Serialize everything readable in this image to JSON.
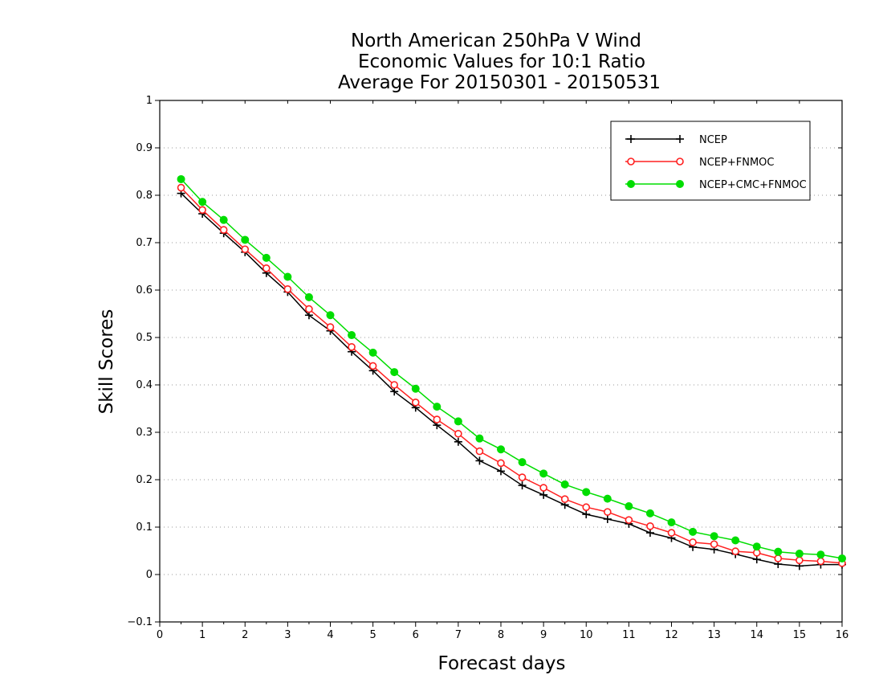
{
  "chart_data": {
    "type": "line",
    "title": [
      "North American 250hPa V Wind",
      "Economic Values for 10:1 Ratio",
      "Average For 20150301 - 20150531"
    ],
    "xlabel": "Forecast days",
    "ylabel": "Skill Scores",
    "xlim": [
      0,
      16
    ],
    "ylim": [
      -0.1,
      1
    ],
    "xticks": [
      "0",
      "1",
      "2",
      "3",
      "4",
      "5",
      "6",
      "7",
      "8",
      "9",
      "10",
      "11",
      "12",
      "13",
      "14",
      "15",
      "16"
    ],
    "yticks": [
      "−0.1",
      "0",
      "0.1",
      "0.2",
      "0.3",
      "0.4",
      "0.5",
      "0.6",
      "0.7",
      "0.8",
      "0.9",
      "1"
    ],
    "grid": "horizontal dotted",
    "legend_position": "top-right",
    "x": [
      0.5,
      1,
      1.5,
      2,
      2.5,
      3,
      3.5,
      4,
      4.5,
      5,
      5.5,
      6,
      6.5,
      7,
      7.5,
      8,
      8.5,
      9,
      9.5,
      10,
      10.5,
      11,
      11.5,
      12,
      12.5,
      13,
      13.5,
      14,
      14.5,
      15,
      15.5,
      16
    ],
    "series": [
      {
        "name": "NCEP",
        "color": "#000000",
        "marker": "plus",
        "values": [
          0.804,
          0.761,
          0.72,
          0.68,
          0.636,
          0.596,
          0.547,
          0.514,
          0.47,
          0.43,
          0.386,
          0.352,
          0.315,
          0.28,
          0.24,
          0.218,
          0.188,
          0.168,
          0.147,
          0.127,
          0.117,
          0.107,
          0.088,
          0.077,
          0.058,
          0.053,
          0.043,
          0.032,
          0.022,
          0.018,
          0.021,
          0.021
        ]
      },
      {
        "name": "NCEP+FNMOC",
        "color": "#ff2020",
        "marker": "open-circle",
        "values": [
          0.816,
          0.769,
          0.727,
          0.686,
          0.646,
          0.602,
          0.56,
          0.522,
          0.48,
          0.44,
          0.4,
          0.363,
          0.327,
          0.297,
          0.26,
          0.235,
          0.205,
          0.183,
          0.159,
          0.142,
          0.132,
          0.115,
          0.102,
          0.088,
          0.068,
          0.064,
          0.049,
          0.046,
          0.034,
          0.03,
          0.028,
          0.024
        ]
      },
      {
        "name": "NCEP+CMC+FNMOC",
        "color": "#00dd00",
        "marker": "filled-circle",
        "values": [
          0.834,
          0.786,
          0.748,
          0.706,
          0.668,
          0.628,
          0.585,
          0.547,
          0.505,
          0.468,
          0.427,
          0.392,
          0.354,
          0.323,
          0.287,
          0.264,
          0.237,
          0.213,
          0.19,
          0.174,
          0.16,
          0.144,
          0.129,
          0.11,
          0.09,
          0.081,
          0.072,
          0.059,
          0.048,
          0.044,
          0.042,
          0.034
        ]
      }
    ]
  }
}
